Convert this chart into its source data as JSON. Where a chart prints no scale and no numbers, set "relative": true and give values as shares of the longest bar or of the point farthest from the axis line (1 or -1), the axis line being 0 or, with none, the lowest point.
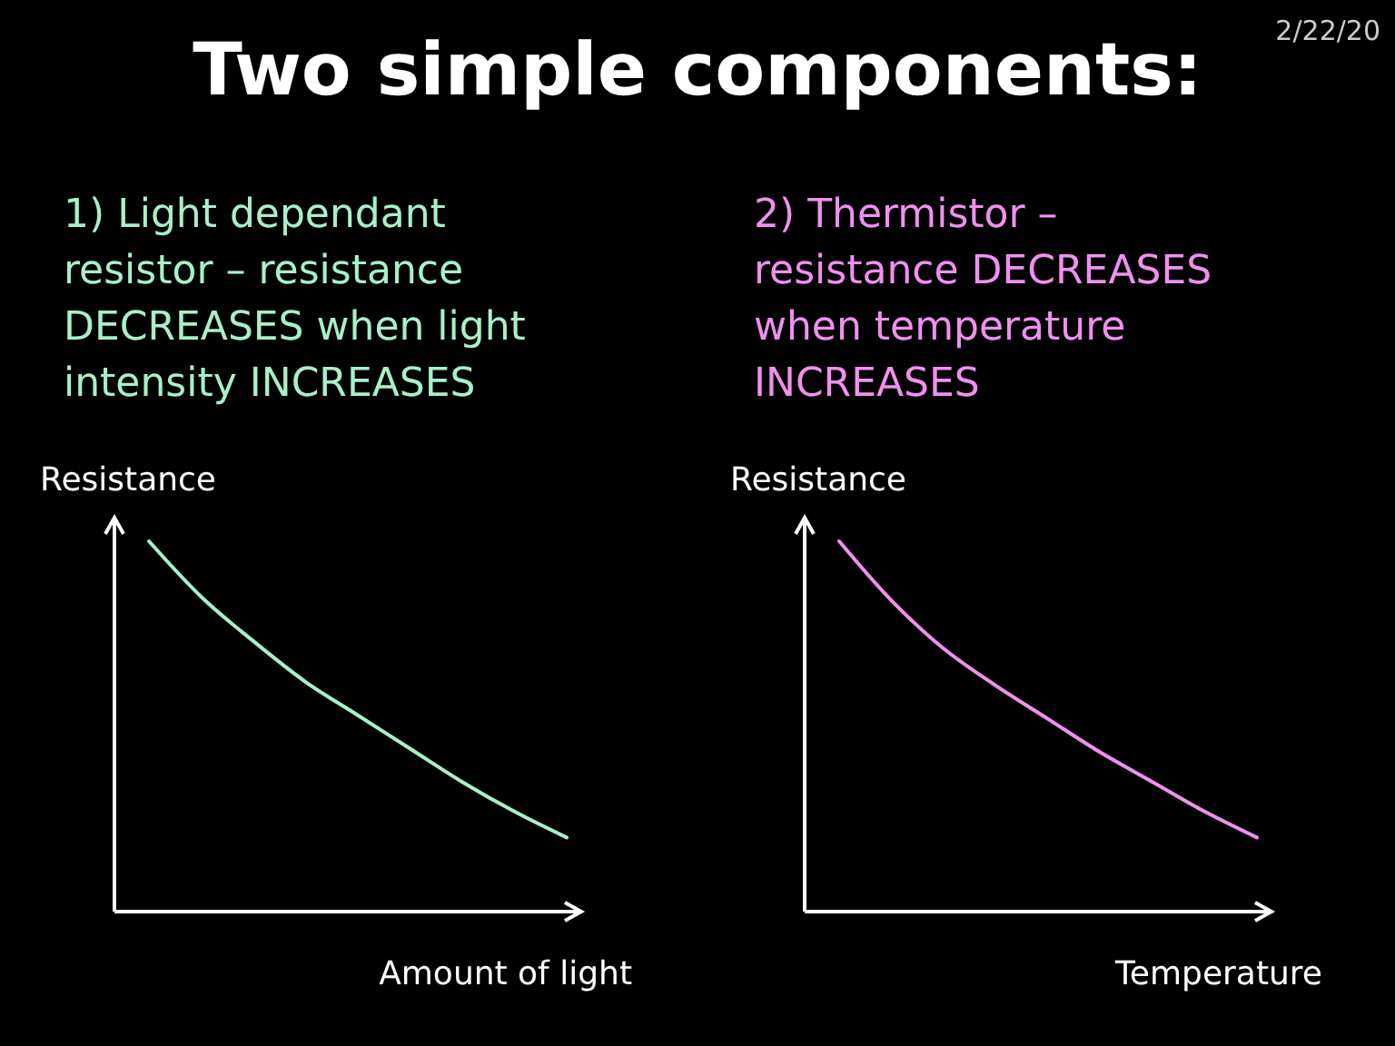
{
  "chart_data": [
    {
      "type": "line",
      "title": "Two simple components:",
      "subtitle": "1) Light dependant resistor – resistance DECREASES when light intensity INCREASES",
      "annotations": [
        "2/22/20"
      ],
      "xlabel": "Amount of light",
      "ylabel": "Resistance",
      "relative": true,
      "categories": [
        null,
        null,
        null,
        null,
        null,
        null,
        null,
        null,
        null
      ],
      "series": [
        {
          "color": "#a8f0c8",
          "values": [
            1.0,
            0.85,
            0.73,
            0.62,
            0.53,
            0.44,
            0.35,
            0.27,
            0.2
          ]
        }
      ]
    },
    {
      "type": "line",
      "subtitle": "2) Thermistor – resistance DECREASES when temperature INCREASES",
      "xlabel": "Temperature",
      "ylabel": "Resistance",
      "relative": true,
      "categories": [
        null,
        null,
        null,
        null,
        null,
        null,
        null,
        null,
        null
      ],
      "series": [
        {
          "color": "#f090f0",
          "values": [
            1.0,
            0.84,
            0.71,
            0.61,
            0.52,
            0.43,
            0.35,
            0.27,
            0.2
          ]
        }
      ]
    }
  ]
}
